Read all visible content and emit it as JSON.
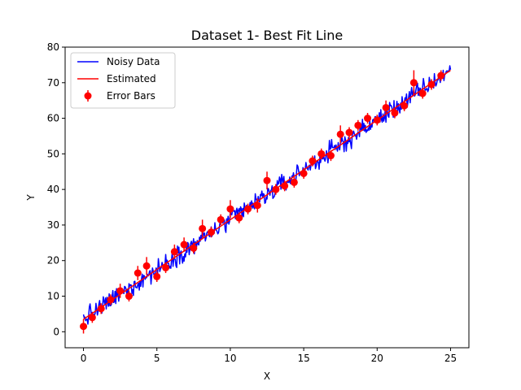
{
  "chart_data": {
    "type": "line",
    "title": "Dataset 1- Best Fit Line",
    "xlabel": "X",
    "ylabel": "Y",
    "xlim": [
      -1.25,
      26.25
    ],
    "ylim": [
      -4.5,
      80
    ],
    "xticks": [
      0,
      5,
      10,
      15,
      20,
      25
    ],
    "yticks": [
      0,
      10,
      20,
      30,
      40,
      50,
      60,
      70,
      80
    ],
    "xtick_labels": [
      "0",
      "5",
      "10",
      "15",
      "20",
      "25"
    ],
    "ytick_labels": [
      "0",
      "10",
      "20",
      "30",
      "40",
      "50",
      "60",
      "70",
      "80"
    ],
    "legend": {
      "placement": "top-left",
      "entries": [
        "Noisy Data",
        "Estimated",
        "Error Bars"
      ]
    },
    "series": [
      {
        "name": "Noisy Data",
        "kind": "noisy-line",
        "color": "#0000ff",
        "x_range": [
          0,
          25
        ],
        "trend_slope": 2.8,
        "trend_intercept": 3.5,
        "noise_amplitude": 2.5,
        "points": 500
      },
      {
        "name": "Estimated",
        "kind": "line",
        "color": "#ff0000",
        "x": [
          0,
          25
        ],
        "y": [
          3.5,
          73.5
        ]
      },
      {
        "name": "Error Bars",
        "kind": "errorbar",
        "color": "#ff0000",
        "x": [
          0,
          0.6,
          1.2,
          1.85,
          2.5,
          3.1,
          3.7,
          4.3,
          5.0,
          5.6,
          6.2,
          6.85,
          7.5,
          8.1,
          8.7,
          9.35,
          10.0,
          10.6,
          11.2,
          11.85,
          12.5,
          13.1,
          13.7,
          14.35,
          15.0,
          15.6,
          16.2,
          16.85,
          17.5,
          18.1,
          18.7,
          19.35,
          20.0,
          20.6,
          21.2,
          21.85,
          22.5,
          23.1,
          23.7,
          24.35
        ],
        "y": [
          1.5,
          4.0,
          6.5,
          9.0,
          11.5,
          10.0,
          16.5,
          18.5,
          15.5,
          18.0,
          22.5,
          24.5,
          23.5,
          29.0,
          28.0,
          31.5,
          34.5,
          32.0,
          34.5,
          35.5,
          42.5,
          40.0,
          41.0,
          42.0,
          44.5,
          48.0,
          50.0,
          49.5,
          55.5,
          56.0,
          58.0,
          60.0,
          59.5,
          63.0,
          61.5,
          63.5,
          70.0,
          67.0,
          69.5,
          72.0
        ],
        "yerr": [
          2.0,
          1.5,
          1.5,
          1.5,
          2.0,
          1.5,
          2.0,
          2.5,
          1.5,
          1.5,
          2.0,
          2.0,
          1.5,
          2.5,
          1.5,
          1.5,
          2.5,
          1.5,
          1.5,
          2.0,
          2.5,
          1.5,
          1.5,
          1.5,
          1.5,
          1.5,
          1.5,
          1.5,
          2.5,
          1.5,
          1.5,
          1.5,
          1.5,
          2.0,
          1.5,
          1.5,
          3.5,
          1.5,
          1.5,
          1.5
        ]
      }
    ]
  }
}
